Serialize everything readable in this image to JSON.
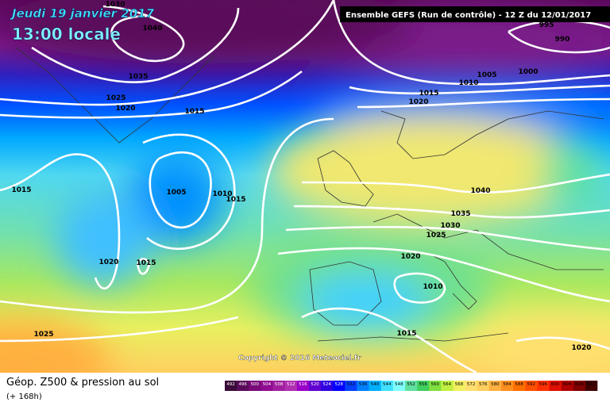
{
  "header": {
    "date": "Jeudi 19 janvier 2017",
    "time": "13:00 locale",
    "run": "Ensemble GEFS  (Run de contrôle)  -  12 Z du 12/01/2017"
  },
  "copyright": "Copyright © 2016 Meteociel.fr",
  "footer": {
    "title": "Géop. Z500 & pression au sol",
    "subtitle": "(+ 168h)"
  },
  "isobar_labels": [
    "1030",
    "1040",
    "1035",
    "1025",
    "1020",
    "1015",
    "995",
    "990",
    "1005",
    "1000",
    "1010",
    "1015",
    "1020",
    "1015",
    "1005",
    "1010",
    "1015",
    "1040",
    "1035",
    "1030",
    "1025",
    "1020",
    "1020",
    "1015",
    "1010",
    "1015",
    "1025",
    "1020"
  ],
  "colorbar": {
    "labels": [
      492,
      496,
      500,
      504,
      508,
      512,
      516,
      520,
      524,
      528,
      532,
      536,
      540,
      544,
      548,
      552,
      556,
      560,
      564,
      568,
      572,
      576,
      580,
      584,
      588,
      592,
      596,
      600,
      604,
      608,
      612
    ],
    "colors": [
      "#3a0a3a",
      "#5a0a5a",
      "#7a0a7a",
      "#900c90",
      "#a020a0",
      "#b030b0",
      "#9a00c8",
      "#6000d0",
      "#3000e0",
      "#0000ff",
      "#0040ff",
      "#0080ff",
      "#00b0ff",
      "#40e0ff",
      "#80ffff",
      "#60e0a0",
      "#40d060",
      "#80e040",
      "#c0f040",
      "#f0f060",
      "#ffe070",
      "#ffd060",
      "#ffb040",
      "#ff9020",
      "#ff7000",
      "#ff5000",
      "#ff3000",
      "#e01000",
      "#b00000",
      "#800000",
      "#400000"
    ]
  }
}
